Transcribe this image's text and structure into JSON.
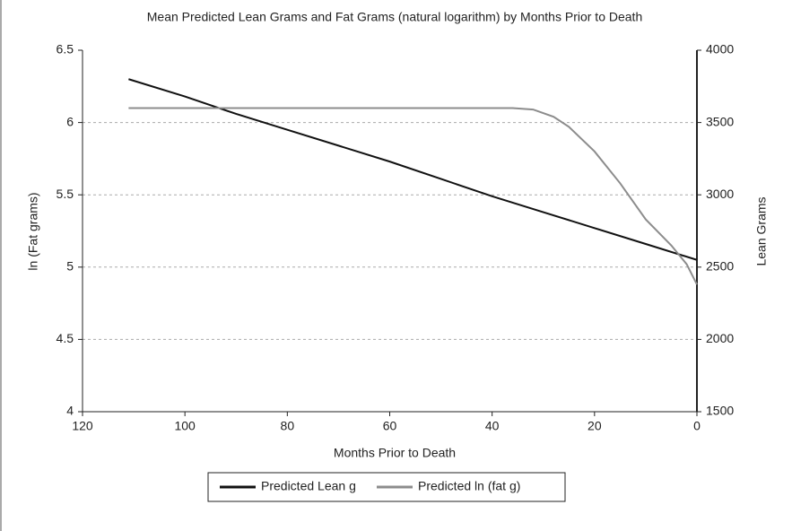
{
  "chart_data": {
    "type": "line",
    "title": "Mean Predicted Lean Grams and Fat Grams (natural logarithm) by Months Prior to Death",
    "x_label": "Months Prior to Death",
    "y_label": "ln (Fat grams)",
    "y2_label": "Lean Grams",
    "xlim": [
      120,
      0
    ],
    "xticks": [
      120,
      100,
      80,
      60,
      40,
      20,
      0
    ],
    "ylim": [
      4,
      6.5
    ],
    "yticks": [
      4,
      4.5,
      5,
      5.5,
      6,
      6.5
    ],
    "y2lim": [
      1500,
      4000
    ],
    "y2ticks": [
      1500,
      2000,
      2500,
      3000,
      3500,
      4000
    ],
    "grid": true,
    "legend": "bottom",
    "series": [
      {
        "name": "Predicted Lean g",
        "color": "#111111",
        "axis": "y2",
        "x": [
          111,
          100,
          90,
          80,
          70,
          60,
          50,
          40,
          30,
          20,
          10,
          0
        ],
        "values": [
          3800,
          3680,
          3560,
          3450,
          3340,
          3230,
          3110,
          2990,
          2880,
          2770,
          2660,
          2550
        ]
      },
      {
        "name": "Predicted ln (fat g)",
        "color": "#8c8c8c",
        "x": [
          111,
          36,
          32,
          28,
          25,
          20,
          15,
          10,
          5,
          2,
          0
        ],
        "values": [
          6.1,
          6.1,
          6.09,
          6.04,
          5.97,
          5.8,
          5.58,
          5.33,
          5.15,
          5.02,
          4.88
        ]
      }
    ]
  }
}
